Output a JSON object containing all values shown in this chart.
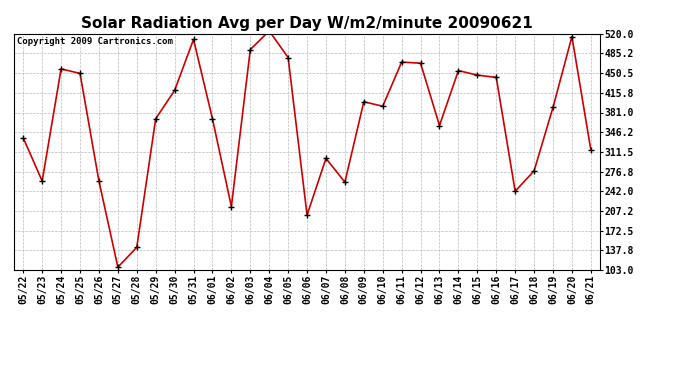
{
  "title": "Solar Radiation Avg per Day W/m2/minute 20090621",
  "copyright": "Copyright 2009 Cartronics.com",
  "dates": [
    "05/22",
    "05/23",
    "05/24",
    "05/25",
    "05/26",
    "05/27",
    "05/28",
    "05/29",
    "05/30",
    "05/31",
    "06/01",
    "06/02",
    "06/03",
    "06/04",
    "06/05",
    "06/06",
    "06/07",
    "06/08",
    "06/09",
    "06/10",
    "06/11",
    "06/12",
    "06/13",
    "06/14",
    "06/15",
    "06/16",
    "06/17",
    "06/18",
    "06/19",
    "06/20",
    "06/21"
  ],
  "values": [
    336,
    260,
    458,
    450,
    260,
    108,
    143,
    370,
    420,
    510,
    370,
    215,
    492,
    525,
    478,
    200,
    300,
    258,
    400,
    392,
    470,
    468,
    358,
    455,
    447,
    443,
    242,
    278,
    390,
    515,
    315
  ],
  "line_color": "#cc0000",
  "marker_color": "#000000",
  "bg_color": "#ffffff",
  "grid_color": "#bbbbbb",
  "ylim_min": 103.0,
  "ylim_max": 520.0,
  "yticks": [
    103.0,
    137.8,
    172.5,
    207.2,
    242.0,
    276.8,
    311.5,
    346.2,
    381.0,
    415.8,
    450.5,
    485.2,
    520.0
  ],
  "title_fontsize": 11,
  "tick_fontsize": 7,
  "copyright_fontsize": 6.5
}
